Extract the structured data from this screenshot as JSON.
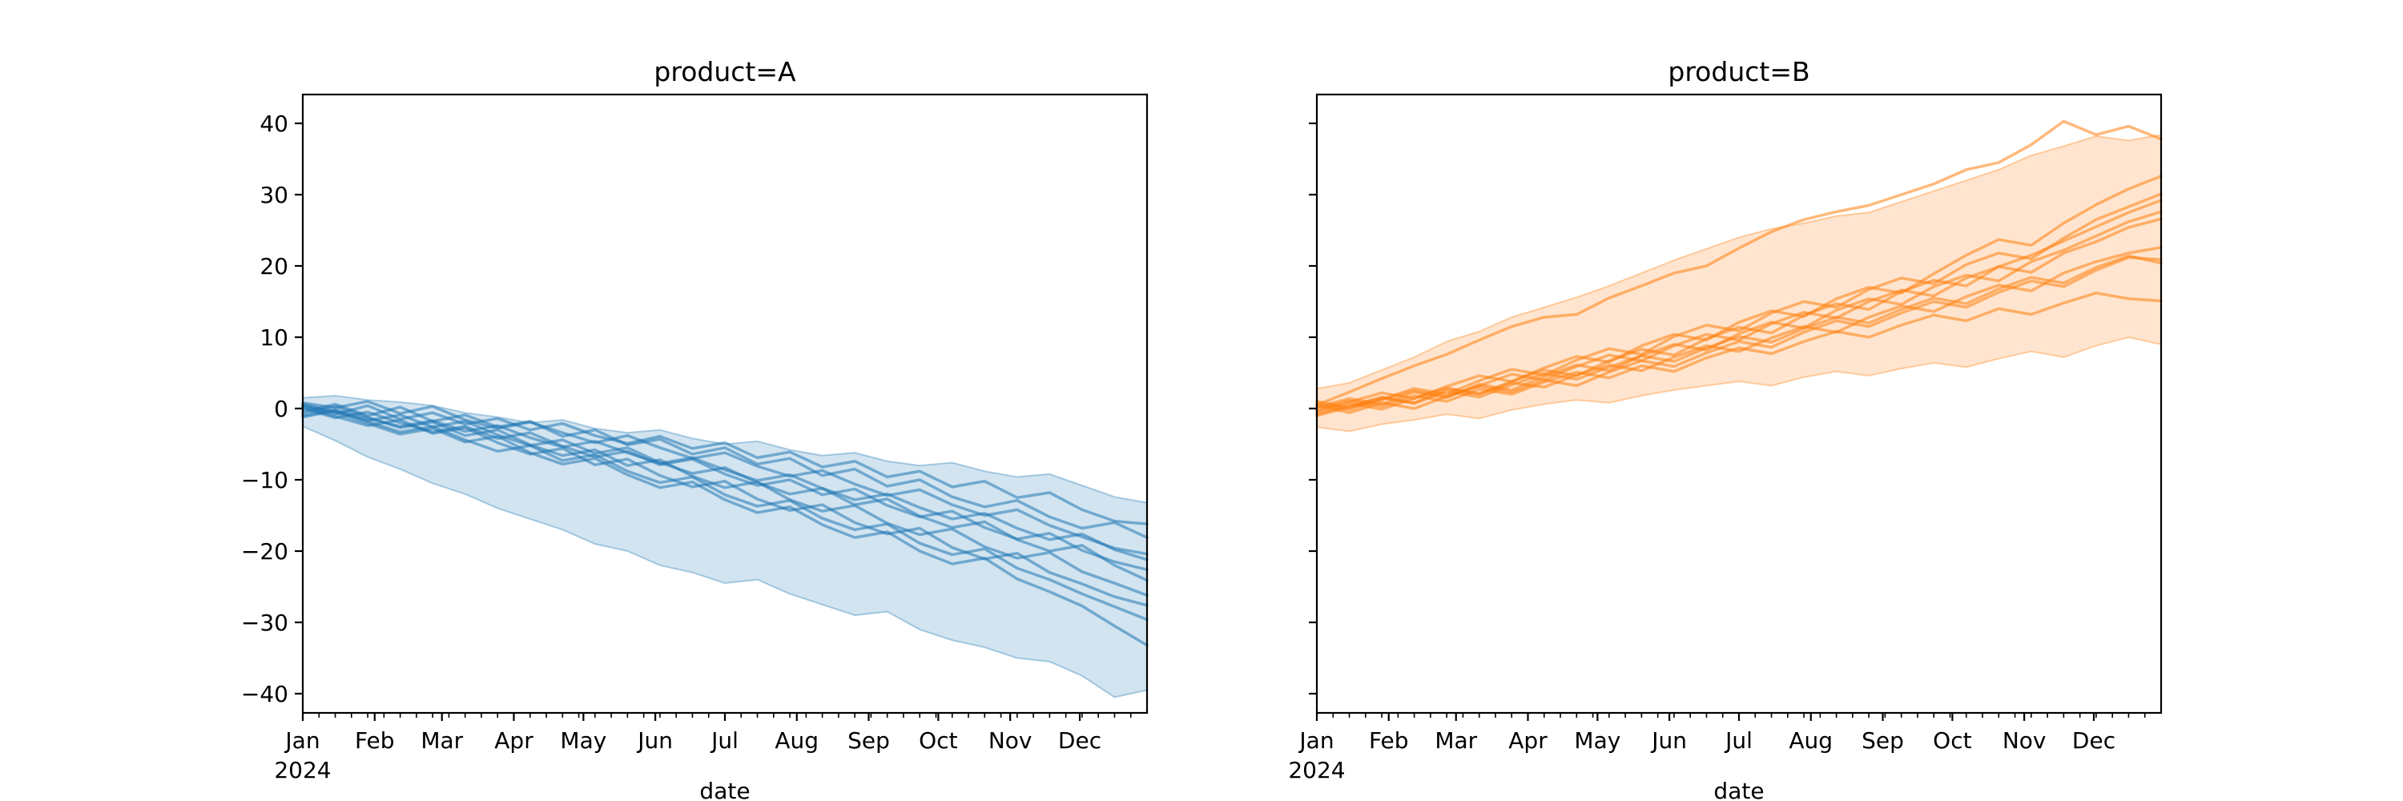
{
  "chart_data": {
    "type": "line",
    "description": "Two-panel faceted time-series: many unit random-walk lines per product with min-max envelope band",
    "x_axis": {
      "label": "date",
      "year_label": "2024",
      "months": [
        "Jan",
        "Feb",
        "Mar",
        "Apr",
        "May",
        "Jun",
        "Jul",
        "Aug",
        "Sep",
        "Oct",
        "Nov",
        "Dec"
      ],
      "month_start_days": [
        0,
        31,
        60,
        91,
        121,
        152,
        182,
        213,
        244,
        274,
        305,
        335
      ],
      "total_days": 364,
      "minor_tick_every_days": 7,
      "sample_step_days": 14
    },
    "y_axis": {
      "ticks": [
        -40,
        -30,
        -20,
        -10,
        0,
        10,
        20,
        30,
        40
      ],
      "range": [
        -43.6,
        44.0
      ],
      "labels_on_panel": 0
    },
    "panels": [
      {
        "title": "product=A",
        "color": "#1f77b4",
        "band": {
          "upper": [
            1.5,
            1.8,
            1.2,
            0.9,
            0.4,
            -0.6,
            -1.2,
            -2.0,
            -1.6,
            -2.8,
            -3.4,
            -3.0,
            -4.2,
            -5.0,
            -4.6,
            -5.8,
            -6.6,
            -6.2,
            -7.4,
            -8.0,
            -7.6,
            -8.8,
            -9.6,
            -9.2,
            -10.8,
            -12.4,
            -13.2
          ],
          "lower": [
            -2.5,
            -4.5,
            -6.8,
            -8.5,
            -10.5,
            -12.0,
            -14.0,
            -15.5,
            -17.0,
            -19.0,
            -20.0,
            -22.0,
            -23.0,
            -24.5,
            -24.0,
            -26.0,
            -27.5,
            -29.0,
            -28.5,
            -31.0,
            -32.5,
            -33.5,
            -35.0,
            -35.5,
            -37.5,
            -40.5,
            -39.5
          ]
        },
        "series": [
          [
            0.3,
            -0.8,
            0.4,
            -1.5,
            -0.6,
            -2.2,
            -1.4,
            -3.0,
            -2.1,
            -3.8,
            -4.9,
            -3.9,
            -5.6,
            -4.8,
            -6.9,
            -6.1,
            -8.2,
            -7.4,
            -9.6,
            -8.8,
            -11.0,
            -10.2,
            -12.5,
            -11.8,
            -14.2,
            -15.8,
            -16.2
          ],
          [
            -0.4,
            0.6,
            -1.0,
            0.2,
            -1.8,
            -0.9,
            -2.6,
            -1.8,
            -3.9,
            -3.0,
            -5.1,
            -4.3,
            -6.4,
            -5.5,
            -7.8,
            -7.0,
            -9.4,
            -8.5,
            -10.9,
            -10.0,
            -12.4,
            -13.8,
            -12.9,
            -15.2,
            -16.8,
            -16.0,
            -18.1
          ],
          [
            0.8,
            0.1,
            1.0,
            -0.7,
            0.3,
            -1.6,
            -2.8,
            -1.9,
            -3.4,
            -4.8,
            -3.8,
            -5.5,
            -7.0,
            -6.2,
            -8.1,
            -9.5,
            -8.7,
            -10.6,
            -12.2,
            -11.4,
            -13.5,
            -15.0,
            -14.2,
            -16.4,
            -18.0,
            -19.6,
            -20.4
          ],
          [
            -1.0,
            -0.2,
            -1.4,
            -2.5,
            -1.7,
            -3.2,
            -2.4,
            -4.1,
            -5.4,
            -4.6,
            -6.2,
            -7.7,
            -6.9,
            -8.6,
            -10.1,
            -9.3,
            -11.2,
            -12.8,
            -12.0,
            -13.9,
            -15.5,
            -14.7,
            -16.8,
            -18.4,
            -17.6,
            -19.8,
            -21.2
          ],
          [
            0.0,
            -1.3,
            -0.5,
            -2.0,
            -3.3,
            -2.5,
            -4.2,
            -3.4,
            -5.3,
            -6.8,
            -6.0,
            -7.9,
            -7.1,
            -9.2,
            -10.8,
            -10.0,
            -12.1,
            -11.3,
            -13.6,
            -15.2,
            -14.4,
            -16.7,
            -18.3,
            -17.5,
            -19.9,
            -21.5,
            -22.6
          ],
          [
            0.5,
            -0.4,
            -1.7,
            -0.9,
            -2.6,
            -1.8,
            -3.7,
            -5.2,
            -4.4,
            -6.3,
            -5.5,
            -7.6,
            -9.1,
            -8.3,
            -10.4,
            -12.0,
            -11.2,
            -13.5,
            -12.7,
            -15.1,
            -16.7,
            -15.9,
            -18.4,
            -20.0,
            -19.2,
            -22.0,
            -24.1
          ],
          [
            -0.7,
            0.3,
            -1.2,
            -2.7,
            -1.9,
            -3.8,
            -3.0,
            -5.1,
            -6.6,
            -5.8,
            -8.0,
            -7.2,
            -9.5,
            -11.1,
            -10.3,
            -12.8,
            -14.4,
            -13.6,
            -16.1,
            -17.7,
            -16.9,
            -19.4,
            -21.0,
            -20.2,
            -22.9,
            -24.5,
            -26.2
          ],
          [
            0.2,
            -1.1,
            -2.4,
            -1.6,
            -3.5,
            -2.7,
            -4.8,
            -6.4,
            -5.6,
            -7.9,
            -7.1,
            -9.4,
            -11.0,
            -10.2,
            -12.7,
            -14.3,
            -13.5,
            -16.0,
            -17.6,
            -16.8,
            -19.5,
            -21.1,
            -20.3,
            -23.0,
            -24.6,
            -26.4,
            -27.6
          ],
          [
            -1.2,
            -0.3,
            -1.8,
            -3.3,
            -2.5,
            -4.4,
            -6.0,
            -5.2,
            -7.3,
            -6.5,
            -8.8,
            -10.4,
            -9.6,
            -12.1,
            -13.7,
            -12.9,
            -15.4,
            -17.0,
            -16.2,
            -18.9,
            -20.5,
            -19.7,
            -22.4,
            -24.0,
            -26.0,
            -27.8,
            -29.6
          ],
          [
            0.6,
            -0.6,
            -2.1,
            -3.6,
            -2.8,
            -4.7,
            -3.9,
            -6.2,
            -7.8,
            -7.0,
            -9.3,
            -11.1,
            -10.3,
            -12.8,
            -14.6,
            -13.8,
            -16.3,
            -18.1,
            -17.3,
            -20.0,
            -21.8,
            -21.0,
            -23.9,
            -25.7,
            -27.7,
            -30.5,
            -33.2
          ]
        ]
      },
      {
        "title": "product=B",
        "color": "#ff7f0e",
        "band": {
          "upper": [
            2.8,
            3.6,
            5.4,
            7.2,
            9.4,
            10.8,
            12.8,
            14.2,
            15.6,
            17.2,
            19.0,
            20.8,
            22.4,
            24.0,
            25.2,
            26.0,
            27.0,
            27.5,
            29.0,
            30.5,
            32.0,
            33.5,
            35.5,
            36.8,
            38.2,
            37.6,
            38.4
          ],
          "lower": [
            -2.6,
            -3.2,
            -2.2,
            -1.6,
            -0.8,
            -1.4,
            -0.2,
            0.6,
            1.2,
            0.8,
            1.8,
            2.6,
            3.2,
            3.8,
            3.2,
            4.4,
            5.2,
            4.6,
            5.6,
            6.4,
            5.8,
            7.0,
            8.0,
            7.2,
            8.8,
            10.0,
            9.0
          ]
        },
        "series": [
          [
            0.5,
            2.3,
            4.2,
            6.0,
            7.6,
            9.6,
            11.5,
            12.8,
            13.2,
            15.5,
            17.2,
            19.0,
            20.0,
            22.5,
            24.8,
            26.5,
            27.6,
            28.5,
            30.0,
            31.5,
            33.5,
            34.5,
            37.0,
            40.3,
            38.4,
            39.6,
            37.8
          ],
          [
            -0.3,
            0.9,
            2.2,
            1.4,
            3.1,
            4.6,
            3.8,
            5.7,
            7.3,
            6.5,
            8.8,
            10.4,
            9.6,
            12.1,
            13.7,
            12.9,
            15.4,
            17.0,
            16.2,
            18.9,
            21.5,
            23.7,
            22.9,
            26.0,
            28.6,
            30.8,
            32.6
          ],
          [
            0.7,
            -0.2,
            1.3,
            2.8,
            2.0,
            3.9,
            5.5,
            4.7,
            6.8,
            8.4,
            7.6,
            10.1,
            11.7,
            10.9,
            13.4,
            15.0,
            14.2,
            16.7,
            18.3,
            17.5,
            20.2,
            21.8,
            21.0,
            23.9,
            26.5,
            28.3,
            30.1
          ],
          [
            -0.8,
            0.4,
            1.6,
            0.8,
            2.7,
            2.0,
            3.8,
            5.4,
            4.6,
            6.7,
            8.3,
            7.5,
            9.8,
            11.4,
            10.6,
            13.1,
            14.7,
            13.9,
            16.4,
            18.0,
            17.2,
            19.9,
            21.5,
            23.5,
            25.5,
            27.5,
            29.2
          ],
          [
            0.2,
            1.4,
            0.6,
            2.3,
            1.5,
            3.4,
            2.6,
            4.5,
            6.1,
            5.3,
            7.4,
            9.0,
            8.2,
            10.5,
            12.1,
            11.3,
            13.8,
            15.4,
            14.6,
            17.1,
            18.7,
            17.9,
            20.6,
            22.2,
            24.2,
            26.2,
            27.6
          ],
          [
            1.0,
            0.1,
            1.2,
            2.5,
            1.7,
            3.2,
            4.8,
            4.0,
            5.9,
            7.5,
            6.7,
            8.8,
            10.4,
            9.6,
            11.9,
            13.5,
            12.7,
            15.0,
            16.6,
            15.8,
            18.3,
            19.9,
            19.1,
            21.8,
            23.4,
            25.4,
            26.6
          ],
          [
            -0.5,
            0.7,
            -0.1,
            1.4,
            2.9,
            2.1,
            3.6,
            3.0,
            4.7,
            6.1,
            5.3,
            7.2,
            8.8,
            8.0,
            9.9,
            11.5,
            10.7,
            12.8,
            14.4,
            13.6,
            15.7,
            17.3,
            16.5,
            19.0,
            20.6,
            21.8,
            22.6
          ],
          [
            0.4,
            -0.6,
            0.8,
            0.0,
            1.7,
            3.1,
            2.3,
            4.0,
            3.2,
            5.1,
            6.7,
            5.9,
            7.8,
            9.4,
            8.6,
            10.7,
            12.3,
            11.5,
            13.4,
            15.0,
            14.2,
            16.3,
            17.9,
            17.1,
            19.4,
            21.2,
            20.9
          ],
          [
            -1.0,
            0.2,
            1.5,
            0.7,
            2.4,
            1.6,
            3.3,
            4.9,
            4.1,
            5.8,
            7.4,
            6.6,
            8.5,
            10.1,
            9.3,
            11.2,
            12.8,
            12.0,
            13.9,
            15.5,
            14.7,
            16.8,
            18.4,
            17.6,
            19.8,
            21.4,
            20.4
          ],
          [
            0.0,
            1.1,
            0.3,
            1.8,
            1.0,
            2.7,
            2.0,
            3.7,
            5.1,
            4.3,
            6.0,
            5.2,
            7.1,
            8.5,
            7.7,
            9.4,
            10.8,
            10.0,
            11.7,
            13.1,
            12.3,
            14.0,
            13.2,
            14.8,
            16.2,
            15.4,
            15.1
          ]
        ]
      }
    ],
    "style": {
      "line_opacity": 0.55,
      "band_fill_opacity": 0.2,
      "band_edge_opacity": 0.35,
      "spine_color": "#000000",
      "background": "#ffffff"
    }
  }
}
